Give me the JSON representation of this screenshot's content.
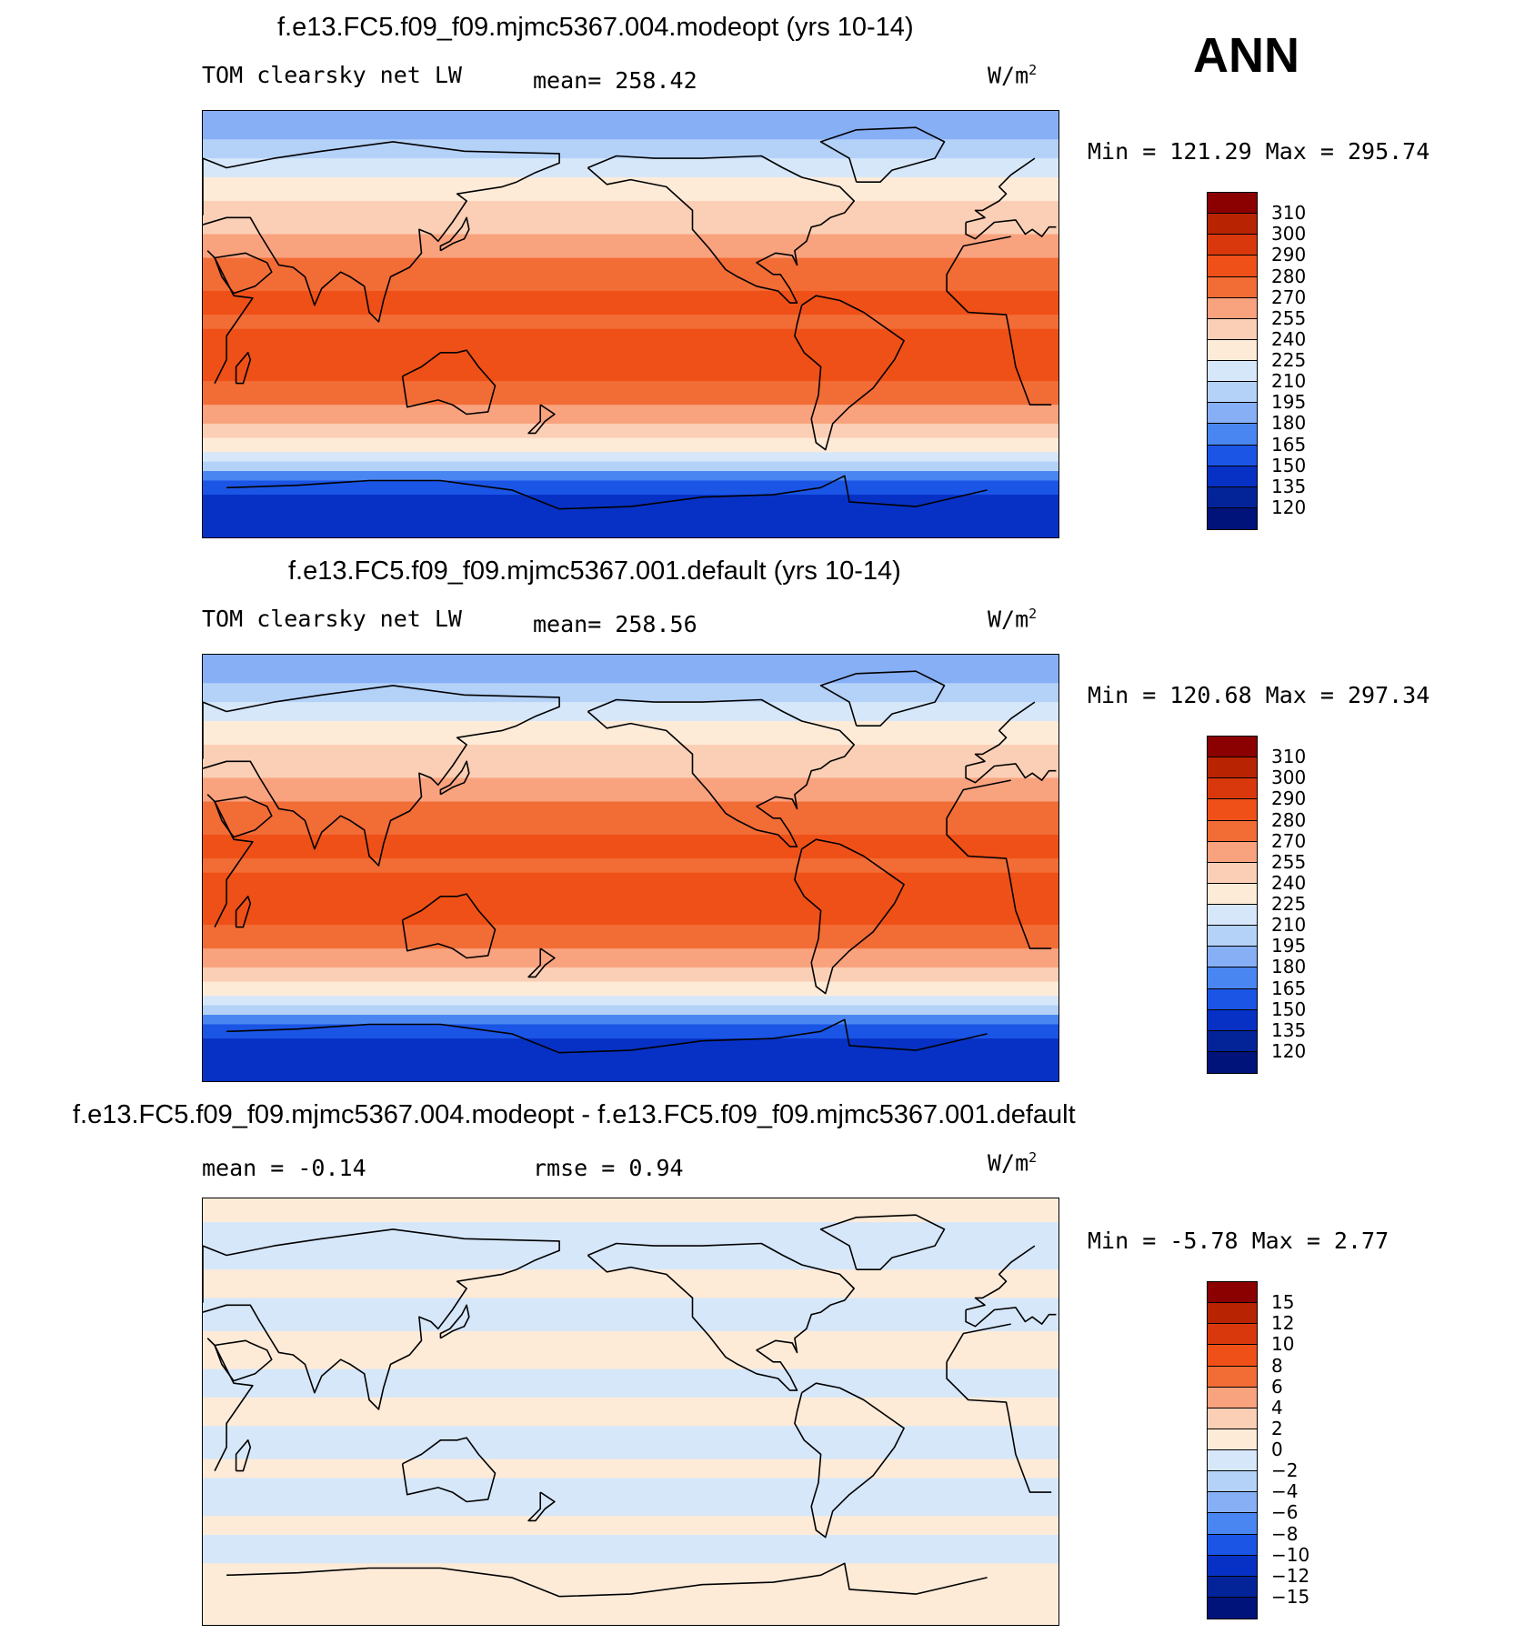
{
  "season": "ANN",
  "units_main": "W/m",
  "units_sup": "2",
  "panels": [
    {
      "title": "f.e13.FC5.f09_f09.mjmc5367.004.modeopt (yrs 10-14)",
      "variable": "TOM clearsky net LW",
      "stat1": "mean= 258.42",
      "stat2": "",
      "minmax": "Min = 121.29 Max = 295.74"
    },
    {
      "title": "f.e13.FC5.f09_f09.mjmc5367.001.default (yrs 10-14)",
      "variable": "TOM clearsky net LW",
      "stat1": "mean= 258.56",
      "stat2": "",
      "minmax": "Min = 120.68 Max = 297.34"
    },
    {
      "title": "f.e13.FC5.f09_f09.mjmc5367.004.modeopt - f.e13.FC5.f09_f09.mjmc5367.001.default",
      "variable": "",
      "stat1": "mean =   -0.14",
      "stat2": "rmse =    0.94",
      "minmax": "Min =   -5.78 Max =    2.77"
    }
  ],
  "colorbars": {
    "main": {
      "labels": [
        "310",
        "300",
        "290",
        "280",
        "270",
        "255",
        "240",
        "225",
        "210",
        "195",
        "180",
        "165",
        "150",
        "135",
        "120"
      ],
      "colors": [
        "#8b0000",
        "#b82302",
        "#d8380c",
        "#ef5017",
        "#f26c36",
        "#f9a27e",
        "#fbcfb5",
        "#fdebd8",
        "#d6e7fa",
        "#b4d1f8",
        "#86aff6",
        "#4a86f2",
        "#1b55e6",
        "#0731c5",
        "#032499",
        "#00137a"
      ]
    },
    "diff": {
      "labels": [
        "15",
        "12",
        "10",
        "8",
        "6",
        "4",
        "2",
        "0",
        "−2",
        "−4",
        "−6",
        "−8",
        "−10",
        "−12",
        "−15"
      ],
      "colors": [
        "#8b0000",
        "#b82302",
        "#d8380c",
        "#ef5017",
        "#f26c36",
        "#f9a27e",
        "#fbcfb5",
        "#fdebd8",
        "#d6e7fa",
        "#b4d1f8",
        "#86aff6",
        "#4a86f2",
        "#1b55e6",
        "#0731c5",
        "#032499",
        "#00137a"
      ]
    }
  },
  "map_bands": {
    "absolute": [
      {
        "lat_top": 90,
        "lat_bottom": 78,
        "color": "#86aff6"
      },
      {
        "lat_top": 78,
        "lat_bottom": 70,
        "color": "#b4d1f8"
      },
      {
        "lat_top": 70,
        "lat_bottom": 62,
        "color": "#d6e7fa"
      },
      {
        "lat_top": 62,
        "lat_bottom": 52,
        "color": "#fdebd8"
      },
      {
        "lat_top": 52,
        "lat_bottom": 38,
        "color": "#fbcfb5"
      },
      {
        "lat_top": 38,
        "lat_bottom": 28,
        "color": "#f9a27e"
      },
      {
        "lat_top": 28,
        "lat_bottom": 14,
        "color": "#f26c36"
      },
      {
        "lat_top": 14,
        "lat_bottom": 4,
        "color": "#ef5017"
      },
      {
        "lat_top": 4,
        "lat_bottom": -2,
        "color": "#f26c36"
      },
      {
        "lat_top": -2,
        "lat_bottom": -24,
        "color": "#ef5017"
      },
      {
        "lat_top": -24,
        "lat_bottom": -34,
        "color": "#f26c36"
      },
      {
        "lat_top": -34,
        "lat_bottom": -42,
        "color": "#f9a27e"
      },
      {
        "lat_top": -42,
        "lat_bottom": -48,
        "color": "#fbcfb5"
      },
      {
        "lat_top": -48,
        "lat_bottom": -54,
        "color": "#fdebd8"
      },
      {
        "lat_top": -54,
        "lat_bottom": -58,
        "color": "#d6e7fa"
      },
      {
        "lat_top": -58,
        "lat_bottom": -62,
        "color": "#b4d1f8"
      },
      {
        "lat_top": -62,
        "lat_bottom": -66,
        "color": "#4a86f2"
      },
      {
        "lat_top": -66,
        "lat_bottom": -72,
        "color": "#1b55e6"
      },
      {
        "lat_top": -72,
        "lat_bottom": -90,
        "color": "#0731c5"
      }
    ],
    "difference": [
      {
        "lat_top": 90,
        "lat_bottom": 80,
        "color": "#fdebd8"
      },
      {
        "lat_top": 80,
        "lat_bottom": 60,
        "color": "#d6e7fa"
      },
      {
        "lat_top": 60,
        "lat_bottom": 48,
        "color": "#fdebd8"
      },
      {
        "lat_top": 48,
        "lat_bottom": 34,
        "color": "#d6e7fa"
      },
      {
        "lat_top": 34,
        "lat_bottom": 18,
        "color": "#fdebd8"
      },
      {
        "lat_top": 18,
        "lat_bottom": 6,
        "color": "#d6e7fa"
      },
      {
        "lat_top": 6,
        "lat_bottom": -6,
        "color": "#fdebd8"
      },
      {
        "lat_top": -6,
        "lat_bottom": -20,
        "color": "#d6e7fa"
      },
      {
        "lat_top": -20,
        "lat_bottom": -28,
        "color": "#fdebd8"
      },
      {
        "lat_top": -28,
        "lat_bottom": -44,
        "color": "#d6e7fa"
      },
      {
        "lat_top": -44,
        "lat_bottom": -52,
        "color": "#fdebd8"
      },
      {
        "lat_top": -52,
        "lat_bottom": -64,
        "color": "#d6e7fa"
      },
      {
        "lat_top": -64,
        "lat_bottom": -90,
        "color": "#fdebd8"
      }
    ]
  }
}
